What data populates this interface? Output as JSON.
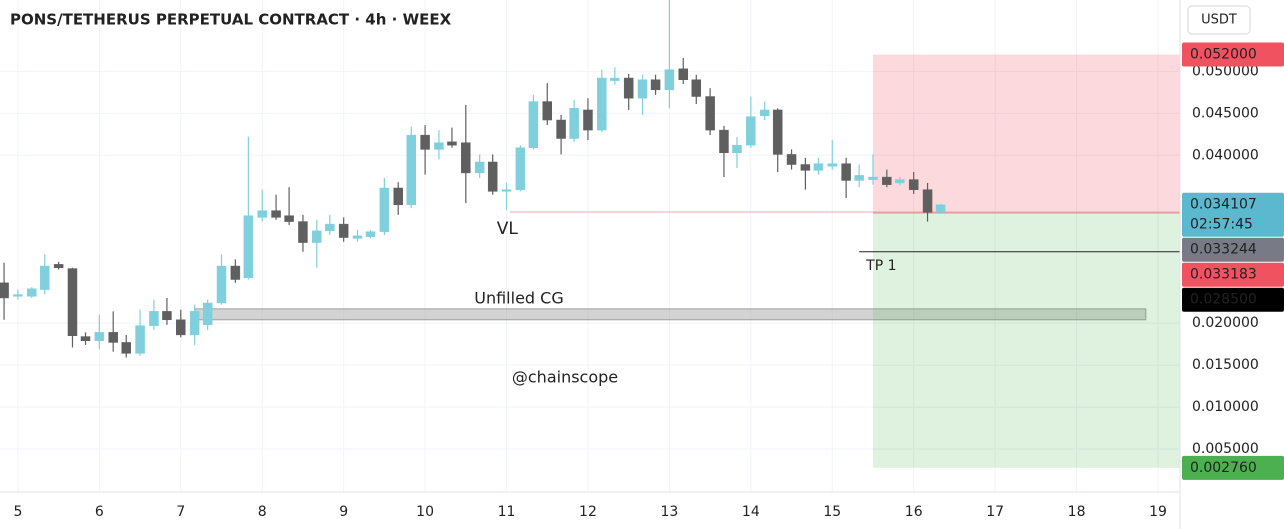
{
  "chart_data": {
    "type": "candlestick",
    "title": "PONS/TETHERUS PERPETUAL CONTRACT · 4h · WEEX",
    "currency": "USDT",
    "watermark": "@chainscope",
    "up_color": "#7fd0dc",
    "down_color": "#5f5f5f",
    "grid": true,
    "xlim": [
      4.78,
      19.27
    ],
    "ylim": [
      0,
      0.0585
    ],
    "xticks": [
      5,
      6,
      7,
      8,
      9,
      10,
      11,
      12,
      13,
      14,
      15,
      16,
      17,
      18,
      19
    ],
    "yticks": [
      {
        "value": 0.05,
        "label": "0.050000"
      },
      {
        "value": 0.045,
        "label": "0.045000"
      },
      {
        "value": 0.04,
        "label": "0.040000"
      },
      {
        "value": 0.02,
        "label": "0.020000"
      },
      {
        "value": 0.015,
        "label": "0.015000"
      },
      {
        "value": 0.01,
        "label": "0.010000"
      },
      {
        "value": 0.005,
        "label": "0.005000"
      }
    ],
    "x": [
      4.83,
      5,
      5.17,
      5.33,
      5.5,
      5.67,
      5.83,
      6,
      6.17,
      6.33,
      6.5,
      6.67,
      6.83,
      7,
      7.17,
      7.33,
      7.5,
      7.67,
      7.83,
      8,
      8.17,
      8.33,
      8.5,
      8.67,
      8.83,
      9,
      9.17,
      9.33,
      9.5,
      9.67,
      9.83,
      10,
      10.17,
      10.33,
      10.5,
      10.67,
      10.83,
      11,
      11.17,
      11.33,
      11.5,
      11.67,
      11.83,
      12,
      12.17,
      12.33,
      12.5,
      12.67,
      12.83,
      13,
      13.17,
      13.33,
      13.5,
      13.67,
      13.83,
      14,
      14.17,
      14.33,
      14.5,
      14.67,
      14.83,
      15,
      15.17,
      15.33,
      15.5,
      15.67,
      15.83,
      16,
      16.17,
      16.33
    ],
    "open": [
      0.0248,
      0.0232,
      0.0232,
      0.024,
      0.027,
      0.0265,
      0.0184,
      0.0179,
      0.0189,
      0.0177,
      0.0164,
      0.0197,
      0.0214,
      0.0204,
      0.0186,
      0.0198,
      0.0224,
      0.0268,
      0.0254,
      0.0326,
      0.0334,
      0.0328,
      0.0321,
      0.0296,
      0.031,
      0.0318,
      0.0301,
      0.0303,
      0.0309,
      0.0361,
      0.0341,
      0.0424,
      0.0407,
      0.0416,
      0.0415,
      0.0379,
      0.0392,
      0.0357,
      0.0359,
      0.0409,
      0.0464,
      0.0442,
      0.042,
      0.0454,
      0.043,
      0.0489,
      0.0492,
      0.0468,
      0.049,
      0.0478,
      0.0503,
      0.049,
      0.047,
      0.043,
      0.0403,
      0.0412,
      0.0447,
      0.0454,
      0.0401,
      0.0389,
      0.0382,
      0.0387,
      0.039,
      0.037,
      0.0371,
      0.0374,
      0.0367,
      0.0371,
      0.0359,
      0.0332
    ],
    "high": [
      0.0272,
      0.024,
      0.0243,
      0.0282,
      0.0273,
      0.0266,
      0.0189,
      0.021,
      0.0214,
      0.0186,
      0.0216,
      0.0228,
      0.023,
      0.0216,
      0.0222,
      0.0228,
      0.0282,
      0.0276,
      0.0422,
      0.0359,
      0.0353,
      0.0362,
      0.0329,
      0.0323,
      0.0329,
      0.0326,
      0.0311,
      0.0311,
      0.0373,
      0.0368,
      0.0434,
      0.0436,
      0.043,
      0.0433,
      0.046,
      0.0401,
      0.0401,
      0.0367,
      0.0412,
      0.0472,
      0.0486,
      0.0448,
      0.0466,
      0.0468,
      0.0502,
      0.0505,
      0.0497,
      0.0496,
      0.0496,
      0.0585,
      0.0516,
      0.0496,
      0.048,
      0.0435,
      0.0422,
      0.047,
      0.0464,
      0.0456,
      0.0407,
      0.0397,
      0.0397,
      0.0418,
      0.0397,
      0.0389,
      0.0401,
      0.0383,
      0.0374,
      0.038,
      0.0367,
      0.0342
    ],
    "low": [
      0.0204,
      0.0228,
      0.023,
      0.0234,
      0.0264,
      0.0171,
      0.0174,
      0.0169,
      0.0166,
      0.0159,
      0.0161,
      0.0192,
      0.0198,
      0.0183,
      0.0174,
      0.0192,
      0.0222,
      0.0248,
      0.0252,
      0.0321,
      0.0323,
      0.0317,
      0.0285,
      0.0266,
      0.0305,
      0.0297,
      0.0297,
      0.0301,
      0.0305,
      0.0329,
      0.0337,
      0.0377,
      0.0395,
      0.0409,
      0.0343,
      0.0373,
      0.0353,
      0.0335,
      0.0357,
      0.0407,
      0.0436,
      0.0401,
      0.0416,
      0.0418,
      0.0428,
      0.0484,
      0.0454,
      0.0448,
      0.0472,
      0.0456,
      0.0485,
      0.0461,
      0.0424,
      0.0374,
      0.0385,
      0.0409,
      0.0442,
      0.038,
      0.0383,
      0.0359,
      0.0377,
      0.0383,
      0.0349,
      0.0362,
      0.0365,
      0.0362,
      0.0364,
      0.0354,
      0.0321,
      0.033
    ],
    "close": [
      0.023,
      0.0234,
      0.0241,
      0.0268,
      0.0266,
      0.0185,
      0.0179,
      0.0189,
      0.0177,
      0.0164,
      0.0197,
      0.0214,
      0.0204,
      0.0186,
      0.0214,
      0.0224,
      0.0268,
      0.0252,
      0.0328,
      0.0334,
      0.0326,
      0.0321,
      0.0296,
      0.031,
      0.0318,
      0.0302,
      0.0304,
      0.0309,
      0.0361,
      0.0341,
      0.0424,
      0.0407,
      0.0415,
      0.0412,
      0.0379,
      0.0392,
      0.0357,
      0.0359,
      0.0409,
      0.0464,
      0.0442,
      0.042,
      0.0456,
      0.043,
      0.0492,
      0.0492,
      0.0468,
      0.049,
      0.0478,
      0.0502,
      0.049,
      0.047,
      0.043,
      0.0403,
      0.0412,
      0.0446,
      0.0454,
      0.0401,
      0.0389,
      0.0382,
      0.039,
      0.039,
      0.037,
      0.0376,
      0.0374,
      0.0365,
      0.0371,
      0.0359,
      0.0332,
      0.0341
    ],
    "zone": {
      "label": "Unfilled CG",
      "low": 0.0204,
      "high": 0.0217,
      "start": 7.17,
      "end": 18.85,
      "color": "#9e9e9e"
    },
    "position": {
      "stop": {
        "value": 0.052,
        "label": "0.052000"
      },
      "entry": 0.033183,
      "target": {
        "value": 0.00276,
        "label": "0.002760"
      },
      "start": 15.5,
      "stop_color": "#f0525f",
      "target_color": "#4caf50"
    },
    "lines": [
      {
        "label": "VL",
        "price": 0.033244,
        "start": 11.04,
        "color": "#e8a9ae",
        "tag_color": "#787b86"
      },
      {
        "label": "TP 1",
        "price": {
          "value": 0.0285,
          "label": "0.028500"
        },
        "start": 15.33,
        "color": "#222222",
        "tag_color": "#000000"
      }
    ],
    "last_price": {
      "value": 0.034107,
      "countdown": "02:57:45",
      "color": "#5bb8cf"
    }
  }
}
